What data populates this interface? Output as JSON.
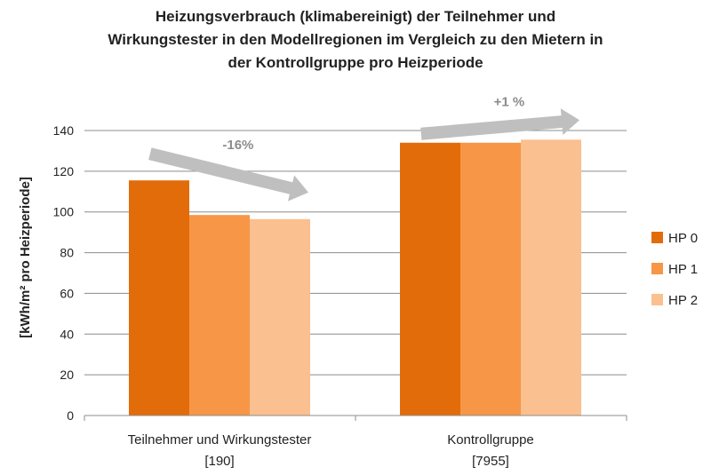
{
  "chart_data": {
    "type": "bar",
    "title_lines": [
      "Heizungsverbrauch (klimabereinigt) der Teilnehmer und",
      "Wirkungstester in den Modellregionen im Vergleich zu den Mietern in",
      "der Kontrollgruppe pro Heizperiode"
    ],
    "ylabel": "[kWh/m² pro Heizperiode]",
    "ylim": [
      0,
      140
    ],
    "yticks": [
      0,
      20,
      40,
      60,
      80,
      100,
      120,
      140
    ],
    "grid": true,
    "legend_position": "right",
    "categories": [
      {
        "line1": "Teilnehmer und Wirkungstester",
        "line2": "[190]"
      },
      {
        "line1": "Kontrollgruppe",
        "line2": "[7955]"
      }
    ],
    "series": [
      {
        "name": "HP 0",
        "color": "#e36c0a",
        "values": [
          115.5,
          134
        ]
      },
      {
        "name": "HP 1",
        "color": "#f79646",
        "values": [
          98.5,
          134
        ]
      },
      {
        "name": "HP 2",
        "color": "#fac090",
        "values": [
          96.5,
          135.5
        ]
      }
    ],
    "annotations": [
      {
        "text": "-16%",
        "category": 0,
        "direction": "down",
        "color": "#bfbfbf",
        "text_color": "#8c8c8c"
      },
      {
        "text": "+1 %",
        "category": 1,
        "direction": "up",
        "color": "#bfbfbf",
        "text_color": "#8c8c8c"
      }
    ]
  }
}
